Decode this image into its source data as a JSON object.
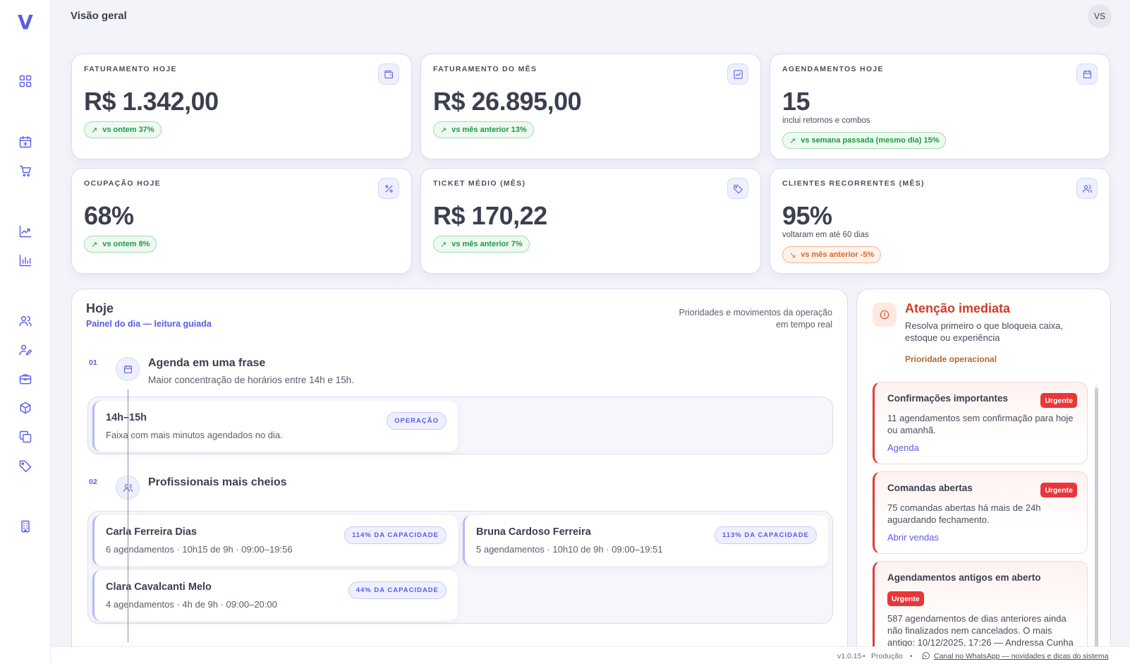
{
  "app": {
    "logo": "V",
    "page_title": "Visão geral",
    "avatar_initials": "VS",
    "accent": "#5b5be6"
  },
  "sidebar": {
    "items": [
      {
        "icon": "dashboard-icon"
      },
      {
        "icon": "calendar-add-icon"
      },
      {
        "icon": "cart-icon"
      },
      {
        "icon": "trend-chart-icon"
      },
      {
        "icon": "bar-chart-icon"
      },
      {
        "icon": "users-icon"
      },
      {
        "icon": "user-edit-icon"
      },
      {
        "icon": "briefcase-icon"
      },
      {
        "icon": "box-icon"
      },
      {
        "icon": "copy-icon"
      },
      {
        "icon": "tag-icon"
      },
      {
        "icon": "building-icon"
      }
    ]
  },
  "kpis": [
    {
      "label": "FATURAMENTO HOJE",
      "value": "R$ 1.342,00",
      "sub": "",
      "delta": "vs ontem 37%",
      "trend": "up",
      "icon": "wallet-icon"
    },
    {
      "label": "FATURAMENTO DO MÊS",
      "value": "R$ 26.895,00",
      "sub": "",
      "delta": "vs mês anterior 13%",
      "trend": "up",
      "icon": "chart-icon"
    },
    {
      "label": "AGENDAMENTOS HOJE",
      "value": "15",
      "sub": "inclui retornos e combos",
      "delta": "vs semana passada (mesmo dia) 15%",
      "trend": "up",
      "icon": "calendar-icon"
    },
    {
      "label": "OCUPAÇÃO HOJE",
      "value": "68%",
      "sub": "",
      "delta": "vs ontem 8%",
      "trend": "up",
      "icon": "percent-icon"
    },
    {
      "label": "TICKET MÉDIO (MÊS)",
      "value": "R$ 170,22",
      "sub": "",
      "delta": "vs mês anterior 7%",
      "trend": "up",
      "icon": "tag-icon"
    },
    {
      "label": "CLIENTES RECORRENTES (MÊS)",
      "value": "95%",
      "sub": "voltaram em até 60 dias",
      "delta": "vs mês anterior -5%",
      "trend": "down",
      "icon": "users-icon"
    }
  ],
  "today": {
    "title": "Hoje",
    "subtitle": "Painel do dia — leitura guiada",
    "description": "Prioridades e movimentos da operação em tempo real",
    "steps": [
      {
        "number": "01",
        "title": "Agenda em uma frase",
        "text": "Maior concentração de horários entre 14h e 15h.",
        "cards": [
          {
            "title": "14h–15h",
            "text": "Faixa com mais minutos agendados no dia.",
            "tag": "OPERAÇÃO"
          }
        ]
      },
      {
        "number": "02",
        "title": "Profissionais mais cheios",
        "cards": [
          {
            "title": "Carla Ferreira Dias",
            "text": "6 agendamentos · 10h15 de 9h · 09:00–19:56",
            "tag": "114% DA CAPACIDADE"
          },
          {
            "title": "Bruna Cardoso Ferreira",
            "text": "5 agendamentos · 10h10 de 9h · 09:00–19:51",
            "tag": "113% DA CAPACIDADE"
          },
          {
            "title": "Clara Cavalcanti Melo",
            "text": "4 agendamentos · 4h de 9h · 09:00–20:00",
            "tag": "44% DA CAPACIDADE"
          }
        ]
      }
    ]
  },
  "attention": {
    "title": "Atenção imediata",
    "description": "Resolva primeiro o que bloqueia caixa, estoque ou experiência",
    "priority": "Prioridade operacional",
    "alerts": [
      {
        "title": "Confirmações importantes",
        "badge": "Urgente",
        "text": "11 agendamentos sem confirmação para hoje ou amanhã.",
        "link": "Agenda"
      },
      {
        "title": "Comandas abertas",
        "badge": "Urgente",
        "text": "75 comandas abertas há mais de 24h aguardando fechamento.",
        "link": "Abrir vendas"
      },
      {
        "title": "Agendamentos antigos em aberto",
        "badge": "Urgente",
        "text": "587 agendamentos de dias anteriores ainda não finalizados nem cancelados. O mais antigo: 10/12/2025, 17:26 — Andressa Cunha"
      }
    ]
  },
  "footer": {
    "version": "v1.0.15",
    "separator": "•",
    "environment": "Produção",
    "link": "Canal no WhatsApp — novidades e dicas do sistema"
  },
  "colors": {
    "up": "#1e9a44",
    "down": "#d86a22",
    "urgent": "#e8373a",
    "attention_title": "#d23b2b"
  }
}
